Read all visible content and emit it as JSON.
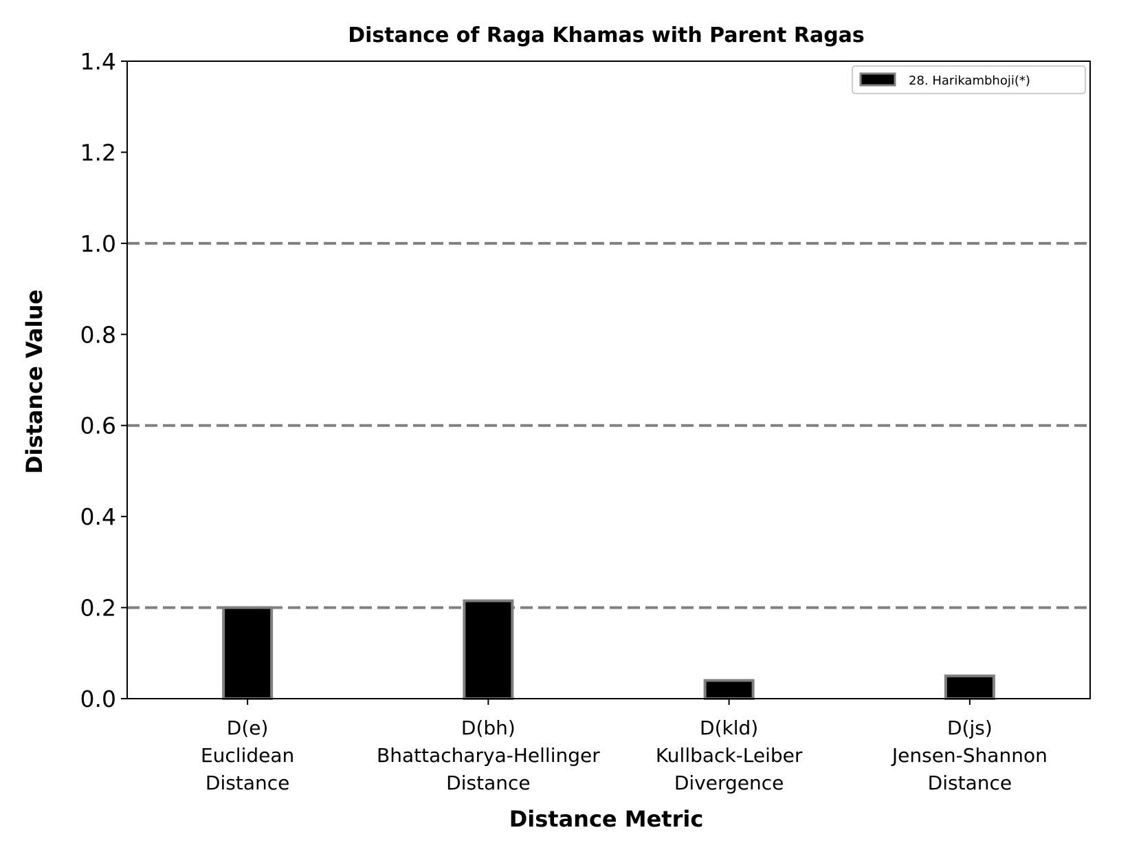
{
  "chart_data": {
    "type": "bar",
    "title": "Distance of Raga Khamas with Parent Ragas",
    "xlabel": "Distance Metric",
    "ylabel": "Distance Value",
    "ylim": [
      0,
      1.4
    ],
    "yticks": [
      "0.0",
      "0.2",
      "0.4",
      "0.6",
      "0.8",
      "1.0",
      "1.2",
      "1.4"
    ],
    "reference_lines": [
      0.2,
      0.6,
      1.0
    ],
    "categories": [
      [
        "D(e)",
        "Euclidean",
        "Distance"
      ],
      [
        "D(bh)",
        "Bhattacharya-Hellinger",
        "Distance"
      ],
      [
        "D(kld)",
        "Kullback-Leiber",
        "Divergence"
      ],
      [
        "D(js)",
        "Jensen-Shannon",
        "Distance"
      ]
    ],
    "series": [
      {
        "name": "28. Harikambhoji(*)",
        "values": [
          0.2,
          0.215,
          0.04,
          0.05
        ]
      }
    ],
    "legend": {
      "position": "top-right"
    },
    "colors": {
      "bar_fill": "#000000",
      "bar_edge": "#808080",
      "ref_line": "#808080"
    }
  }
}
